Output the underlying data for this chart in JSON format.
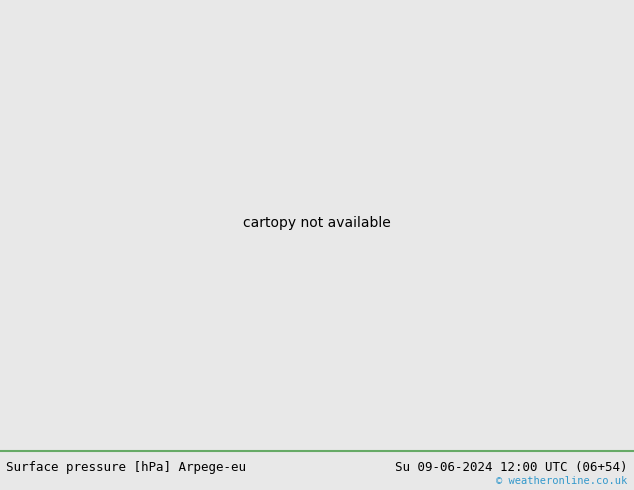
{
  "title_left": "Surface pressure [hPa] Arpege-eu",
  "title_right": "Su 09-06-2024 12:00 UTC (06+54)",
  "copyright": "© weatheronline.co.uk",
  "bg_color": "#e8e8e8",
  "land_color": "#c8e8c0",
  "sea_color": "#e0e8f0",
  "border_color": "#66aa66",
  "contour_color_blue": "#2255bb",
  "contour_color_black": "#111111",
  "contour_color_red": "#cc2200",
  "font_size_bottom": 9,
  "fig_width": 6.34,
  "fig_height": 4.9,
  "lon_min": 13.0,
  "lon_max": 32.0,
  "lat_min": 34.0,
  "lat_max": 47.0
}
